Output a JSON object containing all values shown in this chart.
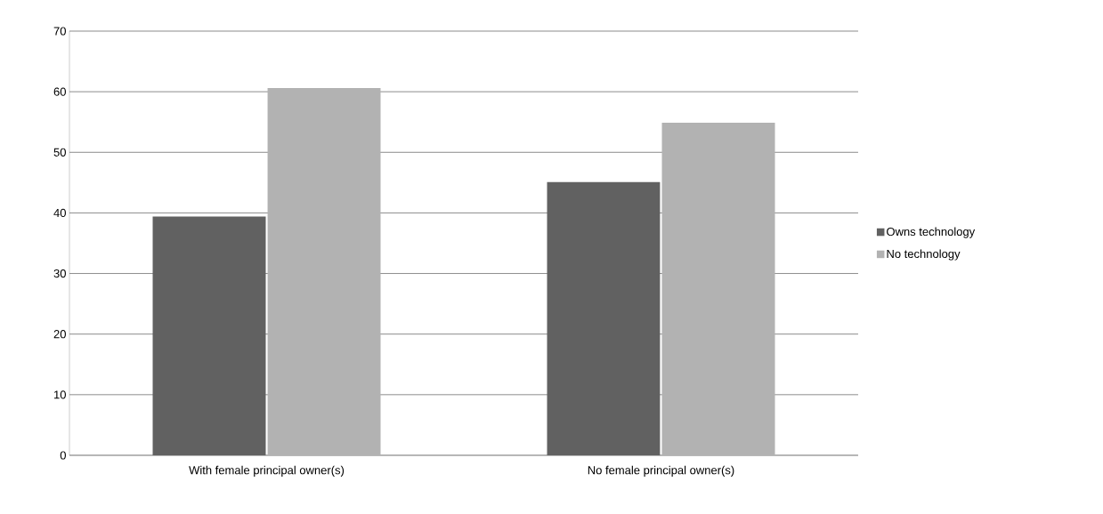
{
  "chart_data": {
    "type": "bar",
    "categories": [
      "With female principal owner(s)",
      "No female principal owner(s)"
    ],
    "series": [
      {
        "name": "Owns technology",
        "color": "#616161",
        "values": [
          39.4,
          45.1
        ]
      },
      {
        "name": "No technology",
        "color": "#b2b2b2",
        "values": [
          60.6,
          54.9
        ]
      }
    ],
    "ylim": [
      0,
      70
    ],
    "yticks": [
      0,
      10,
      20,
      30,
      40,
      50,
      60,
      70
    ],
    "grid": "y",
    "legend": "right"
  }
}
